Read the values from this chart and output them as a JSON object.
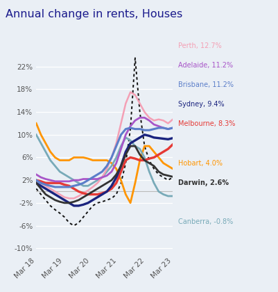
{
  "title": "Annual change in rents, Houses",
  "title_color": "#1a1a8c",
  "background_color": "#eaeff5",
  "ytick_vals": [
    -10,
    -6,
    -2,
    2,
    6,
    10,
    14,
    18,
    22
  ],
  "ytick_labels": [
    "-10%",
    "-6%",
    "-2%",
    "2%",
    "6%",
    "10%",
    "14%",
    "18%",
    "22%"
  ],
  "xtick_labels": [
    "Mar 18",
    "Mar 19",
    "Mar 20",
    "Mar 21",
    "Mar 22",
    "Mar 23"
  ],
  "series": {
    "dotted": {
      "color": "#111111",
      "lw": 1.4,
      "style": "dotted",
      "data": [
        0.5,
        -0.5,
        -1.5,
        -2.5,
        -3.2,
        -3.8,
        -4.5,
        -5.5,
        -6.0,
        -5.5,
        -4.5,
        -3.5,
        -2.5,
        -2.0,
        -1.8,
        -1.5,
        -1.2,
        -0.5,
        1.5,
        5.0,
        11.0,
        23.5,
        14.0,
        8.0,
        5.5,
        4.0,
        3.0,
        2.5,
        2.0,
        2.5
      ]
    },
    "Perth": {
      "color": "#f4a0b5",
      "lw": 1.8,
      "data": [
        2.0,
        1.5,
        1.0,
        0.5,
        0.0,
        -0.5,
        -1.0,
        -1.2,
        -1.2,
        -0.8,
        -0.3,
        0.2,
        0.8,
        1.5,
        2.5,
        4.0,
        6.0,
        8.5,
        12.0,
        15.5,
        17.5,
        17.0,
        15.5,
        14.0,
        13.0,
        12.5,
        12.7,
        12.5,
        12.0,
        12.7
      ]
    },
    "Adelaide": {
      "color": "#a855c8",
      "lw": 2.0,
      "data": [
        3.0,
        2.5,
        2.2,
        2.0,
        1.8,
        1.8,
        1.8,
        1.8,
        2.0,
        2.0,
        2.2,
        2.2,
        2.2,
        2.2,
        2.5,
        2.8,
        3.5,
        5.0,
        7.5,
        10.0,
        11.5,
        12.5,
        13.0,
        13.0,
        12.5,
        11.8,
        11.5,
        11.2,
        11.0,
        11.2
      ]
    },
    "Brisbane": {
      "color": "#5b7ec9",
      "lw": 2.2,
      "data": [
        2.0,
        1.5,
        1.2,
        1.0,
        0.8,
        0.8,
        0.8,
        0.8,
        1.0,
        1.2,
        1.5,
        2.0,
        2.5,
        3.0,
        3.5,
        4.5,
        6.0,
        8.0,
        10.0,
        11.0,
        11.2,
        11.0,
        11.0,
        10.8,
        10.8,
        11.0,
        11.2,
        11.2,
        11.0,
        11.2
      ]
    },
    "Sydney": {
      "color": "#1a237e",
      "lw": 2.4,
      "data": [
        1.5,
        1.0,
        0.5,
        0.0,
        -0.5,
        -1.0,
        -1.5,
        -2.0,
        -2.5,
        -2.5,
        -2.3,
        -2.0,
        -1.5,
        -1.0,
        -0.5,
        0.0,
        1.0,
        2.5,
        4.5,
        7.0,
        8.5,
        9.0,
        9.5,
        10.0,
        9.8,
        9.5,
        9.4,
        9.3,
        9.2,
        9.4
      ]
    },
    "Melbourne": {
      "color": "#e53935",
      "lw": 2.4,
      "data": [
        2.0,
        1.8,
        1.5,
        1.5,
        1.5,
        1.5,
        1.2,
        1.0,
        0.5,
        0.0,
        -0.3,
        -0.5,
        -0.5,
        -0.5,
        -0.3,
        0.0,
        0.5,
        1.5,
        3.5,
        5.5,
        6.0,
        5.8,
        5.5,
        5.5,
        5.8,
        6.0,
        6.5,
        7.0,
        7.5,
        8.3
      ]
    },
    "Hobart": {
      "color": "#ff9500",
      "lw": 2.0,
      "data": [
        12.0,
        10.0,
        8.5,
        7.0,
        6.0,
        5.5,
        5.5,
        5.5,
        6.0,
        6.0,
        6.0,
        5.8,
        5.5,
        5.5,
        5.5,
        5.5,
        5.0,
        4.0,
        2.0,
        -0.5,
        -2.0,
        1.5,
        5.5,
        8.0,
        8.0,
        7.0,
        6.0,
        5.0,
        4.5,
        4.0
      ]
    },
    "Darwin": {
      "color": "#333333",
      "lw": 2.0,
      "data": [
        1.5,
        0.5,
        -0.5,
        -1.0,
        -1.5,
        -1.8,
        -2.0,
        -2.0,
        -1.8,
        -1.5,
        -1.0,
        -0.5,
        0.0,
        0.5,
        1.0,
        1.5,
        2.0,
        3.0,
        4.5,
        6.5,
        8.0,
        8.0,
        6.5,
        5.5,
        5.0,
        4.5,
        3.5,
        3.0,
        2.8,
        2.6
      ]
    },
    "Canberra": {
      "color": "#78aab8",
      "lw": 2.0,
      "data": [
        10.0,
        8.5,
        7.0,
        5.5,
        4.5,
        3.5,
        3.0,
        2.5,
        2.0,
        1.5,
        1.0,
        1.0,
        1.5,
        2.0,
        2.5,
        3.5,
        4.5,
        6.0,
        8.0,
        9.5,
        9.0,
        8.0,
        7.5,
        6.0,
        3.5,
        1.5,
        0.0,
        -0.5,
        -0.8,
        -0.8
      ]
    }
  },
  "legend_items": [
    {
      "label": "Perth, 12.7%",
      "color": "#f4a0b5"
    },
    {
      "label": "Adelaide, 11.2%",
      "color": "#a855c8"
    },
    {
      "label": "Brisbane, 11.2%",
      "color": "#5b7ec9"
    },
    {
      "label": "Sydney, 9.4%",
      "color": "#1a237e"
    },
    {
      "label": "Melbourne, 8.3%",
      "color": "#e53935"
    },
    {
      "label": "",
      "color": null
    },
    {
      "label": "Hobart, 4.0%",
      "color": "#ff9500"
    },
    {
      "label": "Darwin, 2.6%",
      "color": "#333333"
    },
    {
      "label": "",
      "color": null
    },
    {
      "label": "Canberra, -0.8%",
      "color": "#78aab8"
    }
  ]
}
